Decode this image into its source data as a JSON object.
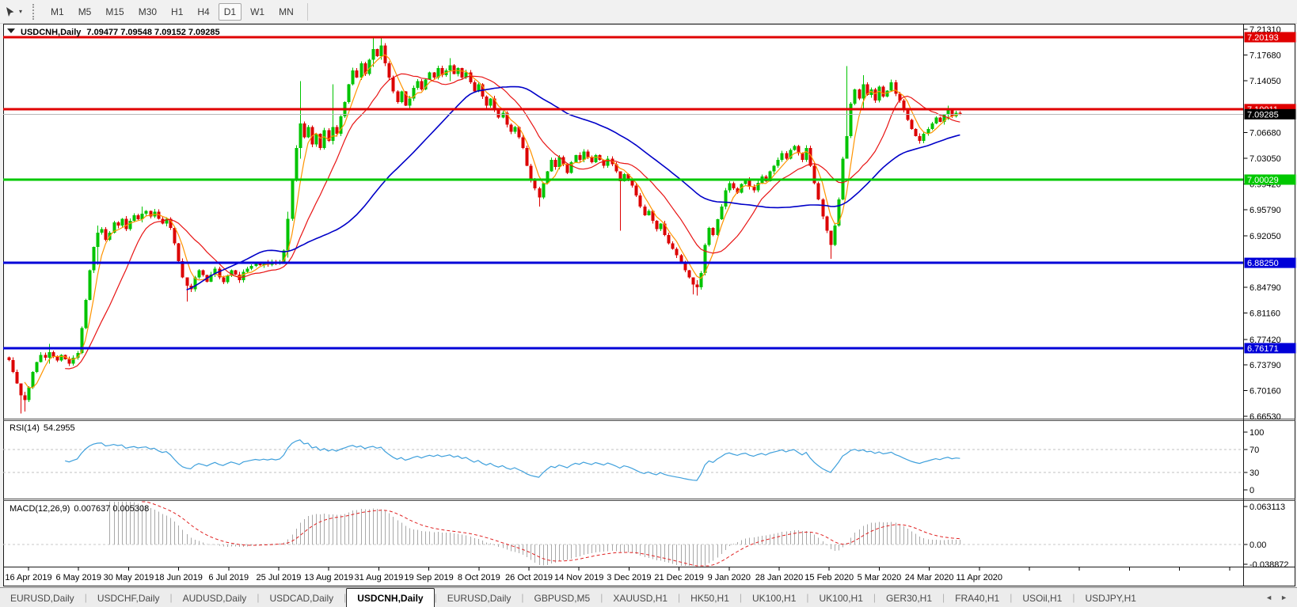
{
  "toolbar": {
    "timeframes": [
      "M1",
      "M5",
      "M15",
      "M30",
      "H1",
      "H4",
      "D1",
      "W1",
      "MN"
    ],
    "active_timeframe": "D1"
  },
  "chart": {
    "title_symbol": "USDCNH,Daily",
    "title_values": "7.09477 7.09548 7.09152 7.09285",
    "collapse_icon": "triangle-down"
  },
  "tabbar": {
    "tabs": [
      "EURUSD,Daily",
      "USDCHF,Daily",
      "AUDUSD,Daily",
      "USDCAD,Daily",
      "USDCNH,Daily",
      "EURUSD,Daily",
      "GBPUSD,M5",
      "XAUUSD,H1",
      "HK50,H1",
      "UK100,H1",
      "UK100,H1",
      "GER30,H1",
      "FRA40,H1",
      "USOil,H1",
      "USDJPY,H1"
    ],
    "active_index": 4,
    "left_arrow": "◄",
    "right_arrow": "►"
  },
  "chart_data": {
    "type": "candlestick",
    "symbol": "USDCNH",
    "timeframe": "Daily",
    "quote": {
      "open": 7.09477,
      "high": 7.09548,
      "low": 7.09152,
      "close": 7.09285
    },
    "ylim": [
      6.66305,
      7.2187
    ],
    "colors": {
      "up": "#00c400",
      "down": "#dc0000",
      "background": "#ffffff",
      "axis_text": "#000000"
    },
    "price_axis_ticks": [
      {
        "label": "7.21310",
        "value": 7.2131
      },
      {
        "label": "7.17680",
        "value": 7.1768
      },
      {
        "label": "7.14050",
        "value": 7.1405
      },
      {
        "label": "7.06680",
        "value": 7.0668
      },
      {
        "label": "7.03050",
        "value": 7.0305
      },
      {
        "label": "6.99420",
        "value": 6.9942
      },
      {
        "label": "6.95790",
        "value": 6.9579
      },
      {
        "label": "6.92050",
        "value": 6.9205
      },
      {
        "label": "6.84790",
        "value": 6.8479
      },
      {
        "label": "6.81160",
        "value": 6.8116
      },
      {
        "label": "6.77420",
        "value": 6.7742
      },
      {
        "label": "6.73790",
        "value": 6.7379
      },
      {
        "label": "6.70160",
        "value": 6.7016
      },
      {
        "label": "6.66530",
        "value": 6.6653
      }
    ],
    "price_badges": [
      {
        "label": "7.20193",
        "value": 7.20193,
        "bg": "#e00000",
        "fg": "#ffffff"
      },
      {
        "label": "7.10011",
        "value": 7.10011,
        "bg": "#e00000",
        "fg": "#ffffff"
      },
      {
        "label": "7.09285",
        "value": 7.09285,
        "bg": "#000000",
        "fg": "#ffffff"
      },
      {
        "label": "7.00029",
        "value": 7.00029,
        "bg": "#00c800",
        "fg": "#ffffff"
      },
      {
        "label": "6.88250",
        "value": 6.8825,
        "bg": "#0000d8",
        "fg": "#ffffff"
      },
      {
        "label": "6.76171",
        "value": 6.76171,
        "bg": "#0000d8",
        "fg": "#ffffff"
      }
    ],
    "horizontal_lines": [
      {
        "value": 7.20193,
        "color": "#e00000",
        "width": 3
      },
      {
        "value": 7.10011,
        "color": "#e00000",
        "width": 3
      },
      {
        "value": 7.09285,
        "color": "#b8b8b8",
        "width": 1
      },
      {
        "value": 7.00029,
        "color": "#00c800",
        "width": 3
      },
      {
        "value": 6.8825,
        "color": "#0000d8",
        "width": 3
      },
      {
        "value": 6.76171,
        "color": "#0000d8",
        "width": 3
      }
    ],
    "moving_averages": [
      {
        "period": 5,
        "color": "#ff9400",
        "width": 1.2
      },
      {
        "period": 15,
        "color": "#e81414",
        "width": 1.2
      },
      {
        "period": 45,
        "color": "#0000c8",
        "width": 1.6
      }
    ],
    "x_dates": [
      "16 Apr 2019",
      "6 May 2019",
      "30 May 2019",
      "18 Jun 2019",
      "6 Jul 2019",
      "25 Jul 2019",
      "13 Aug 2019",
      "31 Aug 2019",
      "19 Sep 2019",
      "8 Oct 2019",
      "26 Oct 2019",
      "14 Nov 2019",
      "3 Dec 2019",
      "21 Dec 2019",
      "9 Jan 2020",
      "28 Jan 2020",
      "15 Feb 2020",
      "5 Mar 2020",
      "24 Mar 2020",
      "11 Apr 2020"
    ],
    "rsi": {
      "label": "RSI(14)",
      "value_label": "54.2955",
      "period": 14,
      "color": "#3fa0dc",
      "levels": [
        {
          "label": "100",
          "value": 100,
          "dashed": false
        },
        {
          "label": "70",
          "value": 70,
          "dashed": true
        },
        {
          "label": "30",
          "value": 30,
          "dashed": true
        },
        {
          "label": "0",
          "value": 0,
          "dashed": false
        }
      ]
    },
    "macd": {
      "label": "MACD(12,26,9)",
      "value_label": "0.007637 0.005308",
      "fast": 12,
      "slow": 26,
      "signal": 9,
      "histogram_color": "#a8a8a8",
      "signal_color": "#e02020",
      "axis": [
        {
          "label": "0.063113",
          "value": 0.063113
        },
        {
          "label": "0.00",
          "value": 0
        },
        {
          "label": "-0.038872",
          "value": -0.038872
        }
      ]
    },
    "candles": [
      [
        6.745
      ],
      [
        6.728
      ],
      [
        6.712
      ],
      [
        6.695,
        6.71,
        6.669
      ],
      [
        6.688,
        6.7,
        6.672
      ],
      [
        6.706
      ],
      [
        6.728
      ],
      [
        6.742
      ],
      [
        6.752
      ],
      [
        6.748
      ],
      [
        6.756,
        6.768,
        6.74
      ],
      [
        6.75
      ],
      [
        6.744
      ],
      [
        6.752
      ],
      [
        6.746
      ],
      [
        6.74
      ],
      [
        6.748
      ],
      [
        6.755
      ],
      [
        6.79
      ],
      [
        6.83
      ],
      [
        6.872
      ],
      [
        6.905
      ],
      [
        6.925,
        6.935,
        6.88
      ],
      [
        6.93
      ],
      [
        6.915
      ],
      [
        6.925
      ],
      [
        6.94
      ],
      [
        6.935
      ],
      [
        6.945
      ],
      [
        6.93
      ],
      [
        6.942
      ],
      [
        6.95
      ],
      [
        6.944
      ],
      [
        6.952,
        6.962,
        6.94
      ],
      [
        6.956
      ],
      [
        6.948
      ],
      [
        6.955
      ],
      [
        6.945
      ],
      [
        6.938
      ],
      [
        6.945
      ],
      [
        6.932
      ],
      [
        6.91
      ],
      [
        6.885
      ],
      [
        6.862
      ],
      [
        6.85,
        6.86,
        6.828
      ],
      [
        6.845
      ],
      [
        6.862
      ],
      [
        6.872
      ],
      [
        6.865
      ],
      [
        6.856
      ],
      [
        6.866
      ],
      [
        6.874
      ],
      [
        6.862
      ],
      [
        6.855
      ],
      [
        6.864
      ],
      [
        6.872
      ],
      [
        6.866
      ],
      [
        6.858
      ],
      [
        6.87
      ],
      [
        6.874
      ],
      [
        6.878
      ],
      [
        6.882
      ],
      [
        6.879
      ],
      [
        6.883
      ],
      [
        6.88
      ],
      [
        6.884
      ],
      [
        6.881
      ],
      [
        6.884
      ],
      [
        6.9
      ],
      [
        6.945,
        6.955,
        6.89
      ],
      [
        7.0
      ],
      [
        7.045
      ],
      [
        7.08,
        7.14,
        7.03
      ],
      [
        7.06
      ],
      [
        7.075
      ],
      [
        7.05
      ],
      [
        7.065
      ],
      [
        7.045
      ],
      [
        7.07
      ],
      [
        7.055
      ],
      [
        7.075,
        7.135,
        7.05
      ],
      [
        7.065
      ],
      [
        7.09
      ],
      [
        7.11
      ],
      [
        7.135
      ],
      [
        7.155
      ],
      [
        7.145
      ],
      [
        7.165
      ],
      [
        7.15
      ],
      [
        7.17
      ],
      [
        7.185,
        7.202,
        7.16
      ],
      [
        7.175
      ],
      [
        7.19,
        7.203,
        7.17
      ],
      [
        7.165
      ],
      [
        7.145
      ],
      [
        7.125
      ],
      [
        7.11
      ],
      [
        7.125
      ],
      [
        7.105
      ],
      [
        7.115
      ],
      [
        7.13
      ],
      [
        7.14
      ],
      [
        7.128
      ],
      [
        7.142
      ],
      [
        7.152
      ],
      [
        7.145
      ],
      [
        7.158
      ],
      [
        7.148
      ],
      [
        7.155
      ],
      [
        7.162,
        7.172,
        7.14
      ],
      [
        7.15
      ],
      [
        7.158
      ],
      [
        7.145
      ],
      [
        7.152
      ],
      [
        7.138
      ],
      [
        7.125
      ],
      [
        7.135
      ],
      [
        7.118
      ],
      [
        7.105
      ],
      [
        7.115
      ],
      [
        7.098
      ],
      [
        7.088
      ],
      [
        7.095
      ],
      [
        7.078
      ],
      [
        7.068
      ],
      [
        7.075
      ],
      [
        7.06
      ],
      [
        7.045
      ],
      [
        7.02
      ],
      [
        7.0
      ],
      [
        6.988
      ],
      [
        6.975,
        6.99,
        6.962
      ],
      [
        6.995
      ],
      [
        7.012
      ],
      [
        7.028
      ],
      [
        7.018
      ],
      [
        7.032
      ],
      [
        7.022
      ],
      [
        7.01
      ],
      [
        7.025
      ],
      [
        7.035
      ],
      [
        7.028
      ],
      [
        7.04
      ],
      [
        7.032
      ],
      [
        7.025
      ],
      [
        7.035
      ],
      [
        7.028
      ],
      [
        7.02
      ],
      [
        7.03
      ],
      [
        7.022
      ],
      [
        7.012
      ],
      [
        6.998,
        7.01,
        6.928
      ],
      [
        7.008
      ],
      [
        7.002
      ],
      [
        6.992
      ],
      [
        6.978
      ],
      [
        6.962
      ],
      [
        6.95
      ],
      [
        6.956
      ],
      [
        6.942
      ],
      [
        6.93
      ],
      [
        6.938
      ],
      [
        6.922
      ],
      [
        6.91
      ],
      [
        6.902
      ],
      [
        6.893
      ],
      [
        6.884
      ],
      [
        6.872
      ],
      [
        6.862
      ],
      [
        6.852,
        6.862,
        6.838
      ],
      [
        6.848,
        6.858,
        6.836
      ],
      [
        6.868
      ],
      [
        6.908
      ],
      [
        6.932
      ],
      [
        6.922
      ],
      [
        6.944
      ],
      [
        6.962
      ],
      [
        6.985
      ],
      [
        6.995
      ],
      [
        6.988
      ],
      [
        6.982
      ],
      [
        6.994
      ],
      [
        7.0
      ],
      [
        6.99
      ],
      [
        6.985
      ],
      [
        6.996
      ],
      [
        7.005
      ],
      [
        6.998
      ],
      [
        7.012
      ],
      [
        7.02
      ],
      [
        7.028
      ],
      [
        7.038
      ],
      [
        7.03
      ],
      [
        7.042
      ],
      [
        7.048
      ],
      [
        7.038
      ],
      [
        7.028
      ],
      [
        7.045
      ],
      [
        7.02
      ],
      [
        6.995
      ],
      [
        6.972
      ],
      [
        6.948
      ],
      [
        6.928
      ],
      [
        6.908,
        6.918,
        6.888
      ],
      [
        6.935
      ],
      [
        6.972
      ],
      [
        7.03
      ],
      [
        7.062,
        7.161,
        7.05
      ],
      [
        7.108
      ],
      [
        7.128
      ],
      [
        7.115
      ],
      [
        7.135,
        7.148,
        7.1
      ],
      [
        7.12
      ],
      [
        7.128
      ],
      [
        7.112
      ],
      [
        7.132
      ],
      [
        7.118
      ],
      [
        7.126
      ],
      [
        7.138
      ],
      [
        7.122
      ],
      [
        7.112
      ],
      [
        7.098
      ],
      [
        7.085
      ],
      [
        7.072
      ],
      [
        7.062
      ],
      [
        7.055
      ],
      [
        7.065
      ],
      [
        7.072
      ],
      [
        7.08
      ],
      [
        7.088
      ],
      [
        7.082
      ],
      [
        7.092
      ],
      [
        7.098,
        7.105,
        7.085
      ],
      [
        7.09
      ],
      [
        7.095
      ],
      [
        7.0929
      ]
    ]
  }
}
